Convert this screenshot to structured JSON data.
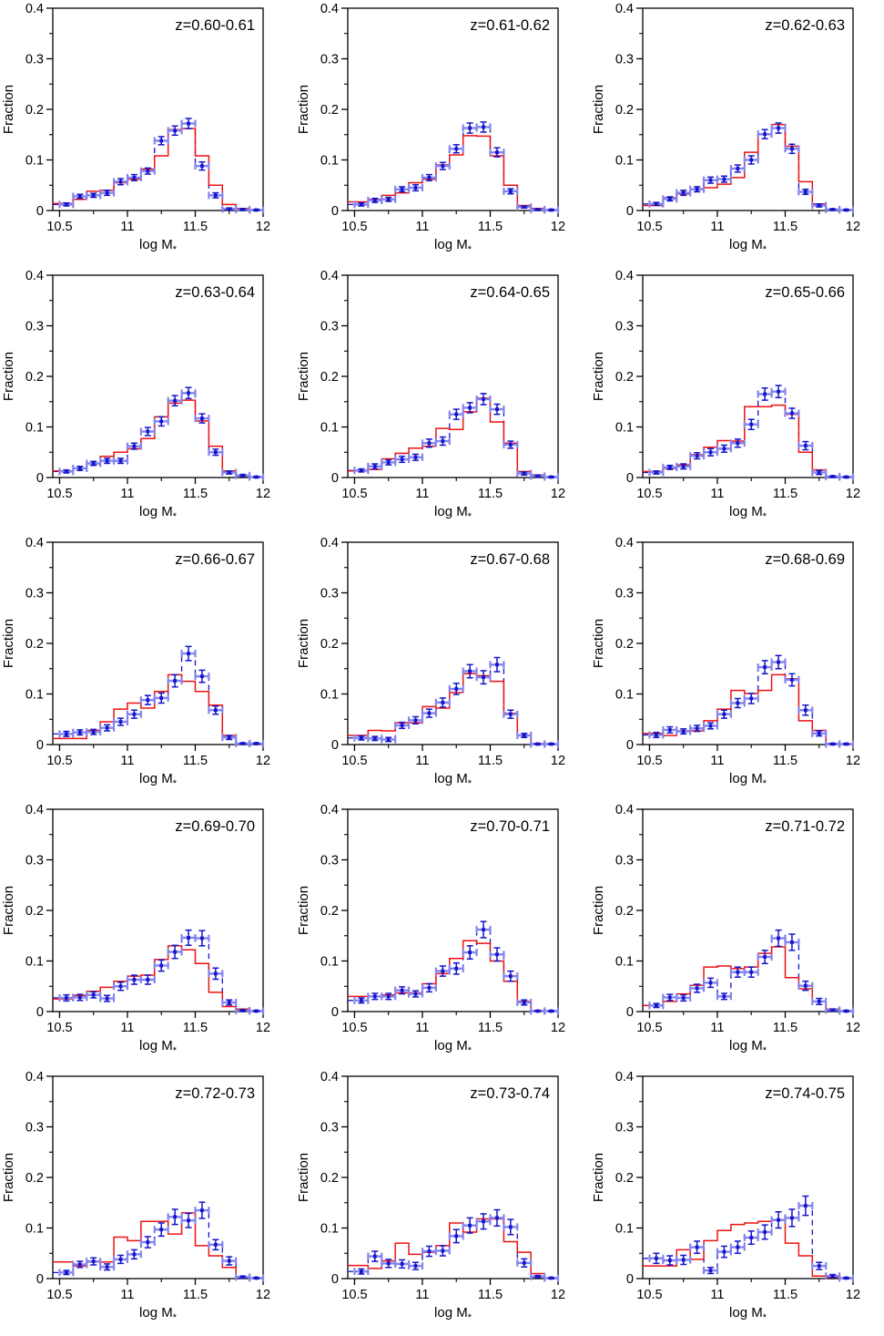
{
  "figure": {
    "kind": "multi-panel histogram figure",
    "rows": 5,
    "cols": 3,
    "colors": {
      "red_hist": "#ee1111",
      "blue_points": "#1414cc",
      "blue_xerr": "#8585ee",
      "frame": "#000000",
      "text": "#000000",
      "background": "#ffffff"
    }
  },
  "chart_data": {
    "type": "bar",
    "note": "15 panels; red solid histogram + blue dashed histogram with square points and error bars",
    "axes": {
      "xlabel": "log M*",
      "ylabel": "Fraction",
      "xlim": [
        10.45,
        12.0
      ],
      "ylim": [
        0,
        0.4
      ],
      "xticks": [
        10.5,
        11,
        11.5,
        12
      ],
      "xtick_labels": [
        "10.5",
        "11",
        "11.5",
        "12"
      ],
      "xminor": [
        10.75,
        11.25,
        11.75
      ],
      "yticks": [
        0,
        0.1,
        0.2,
        0.3,
        0.4
      ],
      "ytick_labels": [
        "0",
        "0.1",
        "0.2",
        "0.3",
        "0.4"
      ],
      "yminor": [
        0.05,
        0.15,
        0.25,
        0.35
      ],
      "bin_start": 10.5,
      "bin_width": 0.1,
      "n_bins": 15,
      "grid": "off",
      "legend": "none"
    },
    "panels": [
      {
        "label": "z=0.60-0.61",
        "red": [
          0.014,
          0.022,
          0.038,
          0.04,
          0.055,
          0.062,
          0.082,
          0.108,
          0.16,
          0.162,
          0.108,
          0.05,
          0.012,
          0.004,
          0.001
        ],
        "blue": [
          0.012,
          0.028,
          0.03,
          0.035,
          0.057,
          0.065,
          0.078,
          0.138,
          0.158,
          0.172,
          0.088,
          0.03,
          0.003,
          0.002,
          0.001
        ],
        "err": [
          0.003,
          0.004,
          0.004,
          0.005,
          0.006,
          0.006,
          0.006,
          0.008,
          0.009,
          0.01,
          0.008,
          0.005,
          0.002,
          0.001,
          0.001
        ]
      },
      {
        "label": "z=0.61-0.62",
        "red": [
          0.017,
          0.022,
          0.03,
          0.035,
          0.055,
          0.062,
          0.09,
          0.11,
          0.148,
          0.147,
          0.108,
          0.05,
          0.01,
          0.004,
          0.001
        ],
        "blue": [
          0.012,
          0.02,
          0.022,
          0.042,
          0.045,
          0.065,
          0.088,
          0.122,
          0.163,
          0.165,
          0.115,
          0.038,
          0.007,
          0.002,
          0.001
        ],
        "err": [
          0.003,
          0.004,
          0.004,
          0.005,
          0.006,
          0.006,
          0.007,
          0.008,
          0.01,
          0.01,
          0.009,
          0.005,
          0.002,
          0.001,
          0.001
        ]
      },
      {
        "label": "z=0.62-0.63",
        "red": [
          0.01,
          0.025,
          0.033,
          0.043,
          0.045,
          0.052,
          0.065,
          0.115,
          0.15,
          0.17,
          0.127,
          0.057,
          0.013,
          0.002,
          0.001
        ],
        "blue": [
          0.013,
          0.023,
          0.035,
          0.042,
          0.06,
          0.062,
          0.083,
          0.1,
          0.151,
          0.163,
          0.122,
          0.037,
          0.01,
          0.002,
          0.001
        ],
        "err": [
          0.003,
          0.004,
          0.005,
          0.005,
          0.006,
          0.006,
          0.007,
          0.008,
          0.009,
          0.01,
          0.009,
          0.005,
          0.003,
          0.001,
          0.001
        ]
      },
      {
        "label": "z=0.63-0.64",
        "red": [
          0.013,
          0.018,
          0.027,
          0.042,
          0.05,
          0.057,
          0.077,
          0.12,
          0.147,
          0.153,
          0.112,
          0.062,
          0.013,
          0.004,
          0.001
        ],
        "blue": [
          0.012,
          0.018,
          0.028,
          0.033,
          0.033,
          0.062,
          0.091,
          0.111,
          0.152,
          0.167,
          0.117,
          0.05,
          0.01,
          0.004,
          0.001
        ],
        "err": [
          0.003,
          0.004,
          0.004,
          0.005,
          0.005,
          0.006,
          0.008,
          0.009,
          0.01,
          0.011,
          0.009,
          0.006,
          0.003,
          0.002,
          0.001
        ]
      },
      {
        "label": "z=0.64-0.65",
        "red": [
          0.013,
          0.016,
          0.037,
          0.048,
          0.058,
          0.062,
          0.097,
          0.095,
          0.13,
          0.157,
          0.11,
          0.068,
          0.012,
          0.005,
          0.001
        ],
        "blue": [
          0.014,
          0.022,
          0.03,
          0.036,
          0.04,
          0.068,
          0.072,
          0.125,
          0.138,
          0.155,
          0.135,
          0.065,
          0.008,
          0.003,
          0.001
        ],
        "err": [
          0.003,
          0.005,
          0.005,
          0.006,
          0.006,
          0.008,
          0.008,
          0.01,
          0.01,
          0.011,
          0.01,
          0.007,
          0.003,
          0.002,
          0.001
        ]
      },
      {
        "label": "z=0.65-0.66",
        "red": [
          0.012,
          0.018,
          0.025,
          0.045,
          0.06,
          0.073,
          0.072,
          0.14,
          0.14,
          0.143,
          0.125,
          0.05,
          0.015,
          0.002,
          0.001
        ],
        "blue": [
          0.01,
          0.02,
          0.022,
          0.043,
          0.05,
          0.057,
          0.068,
          0.105,
          0.165,
          0.17,
          0.127,
          0.063,
          0.01,
          0.002,
          0.001
        ],
        "err": [
          0.003,
          0.004,
          0.005,
          0.006,
          0.007,
          0.007,
          0.008,
          0.01,
          0.012,
          0.012,
          0.01,
          0.008,
          0.004,
          0.001,
          0.001
        ]
      },
      {
        "label": "z=0.66-0.67",
        "red": [
          0.012,
          0.012,
          0.028,
          0.045,
          0.07,
          0.082,
          0.072,
          0.105,
          0.138,
          0.125,
          0.105,
          0.078,
          0.018,
          0.002,
          0.001
        ],
        "blue": [
          0.021,
          0.024,
          0.025,
          0.033,
          0.045,
          0.06,
          0.088,
          0.092,
          0.126,
          0.18,
          0.135,
          0.068,
          0.014,
          0.002,
          0.002
        ],
        "err": [
          0.005,
          0.005,
          0.005,
          0.006,
          0.007,
          0.008,
          0.009,
          0.01,
          0.012,
          0.014,
          0.012,
          0.008,
          0.004,
          0.001,
          0.001
        ]
      },
      {
        "label": "z=0.67-0.68",
        "red": [
          0.018,
          0.028,
          0.027,
          0.043,
          0.043,
          0.075,
          0.072,
          0.103,
          0.14,
          0.136,
          0.125,
          0.062,
          0.018,
          0.002,
          0.001
        ],
        "blue": [
          0.013,
          0.012,
          0.01,
          0.038,
          0.048,
          0.062,
          0.083,
          0.11,
          0.145,
          0.133,
          0.158,
          0.06,
          0.018,
          0.001,
          0.001
        ],
        "err": [
          0.004,
          0.004,
          0.004,
          0.006,
          0.007,
          0.008,
          0.009,
          0.011,
          0.013,
          0.013,
          0.014,
          0.008,
          0.004,
          0.001,
          0.001
        ]
      },
      {
        "label": "z=0.68-0.69",
        "red": [
          0.022,
          0.018,
          0.027,
          0.027,
          0.047,
          0.07,
          0.107,
          0.101,
          0.107,
          0.138,
          0.13,
          0.047,
          0.028,
          0.002,
          0.001
        ],
        "blue": [
          0.019,
          0.029,
          0.026,
          0.032,
          0.037,
          0.06,
          0.082,
          0.091,
          0.153,
          0.163,
          0.128,
          0.068,
          0.022,
          0.001,
          0.001
        ],
        "err": [
          0.005,
          0.006,
          0.005,
          0.006,
          0.006,
          0.008,
          0.009,
          0.01,
          0.013,
          0.013,
          0.012,
          0.01,
          0.005,
          0.001,
          0.001
        ]
      },
      {
        "label": "z=0.69-0.70",
        "red": [
          0.025,
          0.032,
          0.04,
          0.048,
          0.06,
          0.07,
          0.072,
          0.103,
          0.13,
          0.122,
          0.095,
          0.038,
          0.01,
          0.005,
          0.001
        ],
        "blue": [
          0.027,
          0.028,
          0.033,
          0.026,
          0.05,
          0.063,
          0.063,
          0.091,
          0.118,
          0.146,
          0.145,
          0.075,
          0.018,
          0.002,
          0.001
        ],
        "err": [
          0.006,
          0.006,
          0.006,
          0.006,
          0.008,
          0.009,
          0.009,
          0.011,
          0.013,
          0.015,
          0.015,
          0.011,
          0.005,
          0.001,
          0.001
        ]
      },
      {
        "label": "z=0.70-0.71",
        "red": [
          0.03,
          0.03,
          0.033,
          0.037,
          0.037,
          0.055,
          0.075,
          0.105,
          0.14,
          0.135,
          0.1,
          0.06,
          0.02,
          0.002,
          0.001
        ],
        "blue": [
          0.022,
          0.03,
          0.03,
          0.042,
          0.035,
          0.047,
          0.08,
          0.085,
          0.117,
          0.162,
          0.113,
          0.07,
          0.018,
          0.001,
          0.001
        ],
        "err": [
          0.005,
          0.006,
          0.006,
          0.007,
          0.006,
          0.008,
          0.01,
          0.011,
          0.013,
          0.016,
          0.013,
          0.01,
          0.005,
          0.001,
          0.001
        ]
      },
      {
        "label": "z=0.71-0.72",
        "red": [
          0.012,
          0.02,
          0.035,
          0.052,
          0.088,
          0.09,
          0.085,
          0.088,
          0.115,
          0.128,
          0.067,
          0.045,
          0.02,
          0.005,
          0.001
        ],
        "blue": [
          0.012,
          0.028,
          0.027,
          0.046,
          0.057,
          0.03,
          0.078,
          0.078,
          0.108,
          0.145,
          0.137,
          0.051,
          0.02,
          0.003,
          0.001
        ],
        "err": [
          0.004,
          0.006,
          0.006,
          0.008,
          0.009,
          0.006,
          0.01,
          0.01,
          0.013,
          0.016,
          0.016,
          0.009,
          0.006,
          0.002,
          0.001
        ]
      },
      {
        "label": "z=0.72-0.73",
        "red": [
          0.033,
          0.025,
          0.033,
          0.033,
          0.082,
          0.075,
          0.113,
          0.113,
          0.088,
          0.13,
          0.065,
          0.045,
          0.022,
          0.003,
          0.001
        ],
        "blue": [
          0.012,
          0.028,
          0.034,
          0.023,
          0.038,
          0.048,
          0.072,
          0.097,
          0.122,
          0.115,
          0.135,
          0.067,
          0.035,
          0.003,
          0.001
        ],
        "err": [
          0.004,
          0.006,
          0.007,
          0.006,
          0.008,
          0.009,
          0.011,
          0.013,
          0.015,
          0.014,
          0.016,
          0.01,
          0.008,
          0.002,
          0.001
        ]
      },
      {
        "label": "z=0.73-0.74",
        "red": [
          0.026,
          0.02,
          0.035,
          0.07,
          0.048,
          0.052,
          0.065,
          0.11,
          0.092,
          0.118,
          0.118,
          0.073,
          0.052,
          0.01,
          0.001
        ],
        "blue": [
          0.014,
          0.044,
          0.03,
          0.029,
          0.025,
          0.054,
          0.055,
          0.084,
          0.105,
          0.113,
          0.12,
          0.102,
          0.031,
          0.004,
          0.001
        ],
        "err": [
          0.005,
          0.01,
          0.008,
          0.008,
          0.007,
          0.01,
          0.01,
          0.013,
          0.015,
          0.015,
          0.016,
          0.015,
          0.008,
          0.002,
          0.001
        ]
      },
      {
        "label": "z=0.74-0.75",
        "red": [
          0.025,
          0.025,
          0.057,
          0.038,
          0.075,
          0.095,
          0.107,
          0.11,
          0.113,
          0.115,
          0.07,
          0.045,
          0.005,
          0.002,
          0.001
        ],
        "blue": [
          0.04,
          0.036,
          0.037,
          0.062,
          0.016,
          0.053,
          0.062,
          0.081,
          0.092,
          0.116,
          0.12,
          0.144,
          0.025,
          0.005,
          0.001
        ],
        "err": [
          0.01,
          0.009,
          0.009,
          0.012,
          0.006,
          0.011,
          0.012,
          0.013,
          0.014,
          0.016,
          0.017,
          0.019,
          0.007,
          0.003,
          0.001
        ]
      }
    ]
  }
}
